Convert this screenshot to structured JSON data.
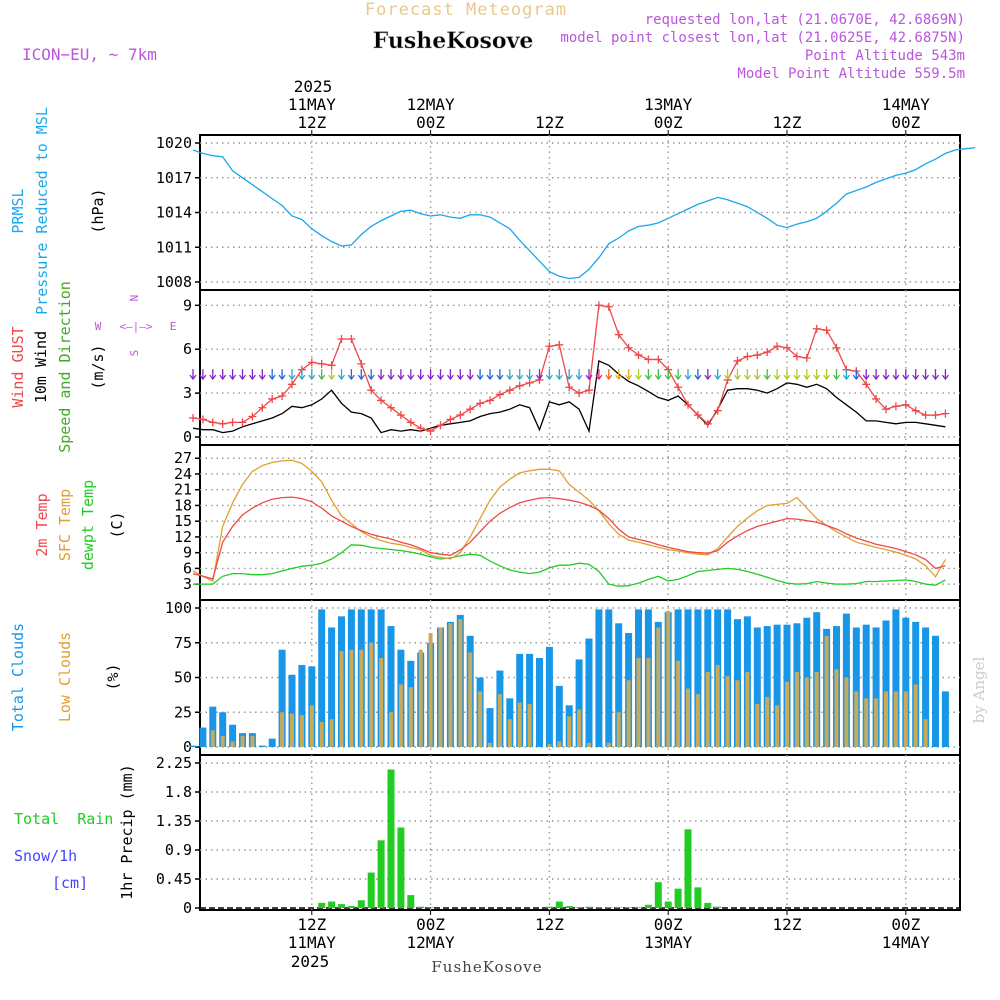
{
  "header": {
    "title": "Forecast Meteogram",
    "location": "FusheKosove",
    "model": "ICON−EU, ~ 7km",
    "requested": "requested lon,lat (21.0670E, 42.6869N)",
    "closest": "model point closest lon,lat (21.0625E, 42.6875N)",
    "point_alt": "Point Altitude 543m",
    "model_alt": "Model Point Altitude 559.5m",
    "footer": "FusheKosove",
    "credit": "by Angel"
  },
  "time_axis": {
    "hour_labels": [
      "12Z",
      "00Z",
      "12Z",
      "00Z",
      "12Z",
      "00Z"
    ],
    "date_labels": [
      "11MAY",
      "12MAY",
      "",
      "13MAY",
      "",
      "14MAY"
    ],
    "year": "2025",
    "hours": [
      12,
      24,
      36,
      48,
      60,
      72
    ]
  },
  "panel_labels": {
    "pressure": [
      "PRMSL",
      "Pressure Reduced to MSL",
      "(hPa)"
    ],
    "wind": [
      "Wind GUST",
      "10m Wind",
      "Speed and Direction",
      "(m/s)"
    ],
    "compass": {
      "n": "N",
      "s": "S",
      "w": "W",
      "e": "E",
      "mid": "<–|–>"
    },
    "temp": [
      "2m Temp",
      "SFC Temp",
      "dewpt Temp",
      "(C)"
    ],
    "clouds": [
      "Total Clouds",
      "Low Clouds",
      "(%)"
    ],
    "precip": [
      "Total  Rain",
      "Snow/1h",
      "[cm]",
      "1hr Precip (mm)"
    ]
  },
  "colors": {
    "pressure": "#1aa7ec",
    "gust": "#f04848",
    "wind": "#000000",
    "arrows": "#44aa22",
    "temp2m": "#f04848",
    "sfc": "#e0a030",
    "dew": "#22cc22",
    "total_clouds": "#1896e8",
    "low_clouds": "#c8aa5a",
    "rain": "#22cc22",
    "snow": "#4444ff",
    "title": "#e8c88c",
    "meta": "#bb55dd"
  },
  "chart_data": [
    {
      "type": "line",
      "title": "PRMSL",
      "ylabel": "(hPa)",
      "ylim": [
        1008,
        1020
      ],
      "yticks": [
        1008,
        1011,
        1014,
        1017,
        1020
      ],
      "x": [
        0,
        1,
        2,
        3,
        4,
        5,
        6,
        7,
        8,
        9,
        10,
        11,
        12,
        13,
        14,
        15,
        16,
        17,
        18,
        19,
        20,
        21,
        22,
        23,
        24,
        25,
        26,
        27,
        28,
        29,
        30,
        31,
        32,
        33,
        34,
        35,
        36,
        37,
        38,
        39,
        40,
        41,
        42,
        43,
        44,
        45,
        46,
        47,
        48,
        49,
        50,
        51,
        52,
        53,
        54,
        55,
        56,
        57,
        58,
        59,
        60,
        61,
        62,
        63,
        64,
        65,
        66,
        67,
        68,
        69,
        70,
        71,
        72,
        73,
        74,
        75,
        76,
        77,
        78,
        79
      ],
      "values": [
        1019.4,
        1019.1,
        1018.9,
        1018.8,
        1017.6,
        1017,
        1016.4,
        1015.8,
        1015.2,
        1014.6,
        1013.7,
        1013.4,
        1012.6,
        1012,
        1011.5,
        1011.1,
        1011.2,
        1012.1,
        1012.8,
        1013.3,
        1013.7,
        1014.1,
        1014.2,
        1013.9,
        1013.7,
        1013.8,
        1013.6,
        1013.5,
        1013.8,
        1013.8,
        1013.6,
        1013.1,
        1012.6,
        1011.6,
        1010.7,
        1009.8,
        1008.9,
        1008.5,
        1008.3,
        1008.4,
        1009.1,
        1010.1,
        1011.3,
        1011.8,
        1012.4,
        1012.8,
        1012.9,
        1013.1,
        1013.5,
        1013.9,
        1014.3,
        1014.7,
        1015,
        1015.3,
        1015.1,
        1014.8,
        1014.5,
        1014,
        1013.5,
        1012.9,
        1012.7,
        1013,
        1013.2,
        1013.5,
        1014.1,
        1014.8,
        1015.6,
        1015.9,
        1016.2,
        1016.6,
        1016.9,
        1017.2,
        1017.4,
        1017.7,
        1018.2,
        1018.6,
        1019.1,
        1019.4,
        1019.5,
        1019.6
      ]
    },
    {
      "type": "line",
      "title": "Wind",
      "ylabel": "(m/s)",
      "ylim": [
        0,
        9.5
      ],
      "yticks": [
        0,
        3,
        6,
        9
      ],
      "x": [
        0,
        1,
        2,
        3,
        4,
        5,
        6,
        7,
        8,
        9,
        10,
        11,
        12,
        13,
        14,
        15,
        16,
        17,
        18,
        19,
        20,
        21,
        22,
        23,
        24,
        25,
        26,
        27,
        28,
        29,
        30,
        31,
        32,
        33,
        34,
        35,
        36,
        37,
        38,
        39,
        40,
        41,
        42,
        43,
        44,
        45,
        46,
        47,
        48,
        49,
        50,
        51,
        52,
        53,
        54,
        55,
        56,
        57,
        58,
        59,
        60,
        61,
        62,
        63,
        64,
        65,
        66,
        67,
        68,
        69,
        70,
        71,
        72,
        73,
        74,
        75,
        76
      ],
      "series": [
        {
          "name": "Wind GUST",
          "values": [
            1.3,
            1.2,
            1,
            0.9,
            1,
            1,
            1.4,
            2,
            2.6,
            2.8,
            3.6,
            4.6,
            5.1,
            5,
            4.9,
            6.7,
            6.7,
            5,
            3.2,
            2.5,
            2,
            1.5,
            1,
            0.6,
            0.4,
            0.8,
            1.2,
            1.5,
            1.9,
            2.3,
            2.5,
            2.9,
            3.2,
            3.5,
            3.7,
            3.9,
            6.2,
            6.3,
            3.4,
            3,
            3.2,
            9,
            8.9,
            7,
            6.1,
            5.6,
            5.3,
            5.3,
            4.6,
            3.4,
            2.2,
            1.5,
            0.9,
            1.8,
            3.9,
            5.2,
            5.5,
            5.6,
            5.8,
            6.2,
            6.1,
            5.5,
            5.4,
            7.4,
            7.3,
            6.1,
            4.6,
            4.5,
            3.6,
            2.6,
            1.9,
            2.1,
            2.2,
            1.8,
            1.5,
            1.5,
            1.6
          ]
        },
        {
          "name": "10m Wind",
          "values": [
            0.6,
            0.5,
            0.5,
            0.3,
            0.4,
            0.7,
            0.9,
            1.1,
            1.3,
            1.6,
            2.1,
            2,
            2.2,
            2.6,
            3.2,
            2.3,
            1.7,
            1.6,
            1.3,
            0.3,
            0.5,
            0.4,
            0.5,
            0.4,
            0.6,
            0.8,
            0.9,
            1,
            1.1,
            1.4,
            1.6,
            1.7,
            1.9,
            2.2,
            2,
            0.5,
            2.4,
            2.2,
            2.4,
            1.9,
            0.4,
            5.2,
            4.9,
            4.3,
            3.8,
            3.5,
            3.1,
            2.7,
            2.5,
            2.8,
            2.2,
            1.5,
            0.8,
            1.9,
            3.2,
            3.3,
            3.3,
            3.2,
            3,
            3.3,
            3.7,
            3.6,
            3.4,
            3.6,
            3.3,
            2.7,
            2.2,
            1.7,
            1.1,
            1.1,
            1,
            0.9,
            1,
            1,
            0.9,
            0.8,
            0.7
          ]
        }
      ]
    },
    {
      "type": "line",
      "title": "Temperature",
      "ylabel": "(C)",
      "ylim": [
        1.5,
        28
      ],
      "yticks": [
        3,
        6,
        9,
        12,
        15,
        18,
        21,
        24,
        27
      ],
      "x": [
        0,
        1,
        2,
        3,
        4,
        5,
        6,
        7,
        8,
        9,
        10,
        11,
        12,
        13,
        14,
        15,
        16,
        17,
        18,
        19,
        20,
        21,
        22,
        23,
        24,
        25,
        26,
        27,
        28,
        29,
        30,
        31,
        32,
        33,
        34,
        35,
        36,
        37,
        38,
        39,
        40,
        41,
        42,
        43,
        44,
        45,
        46,
        47,
        48,
        49,
        50,
        51,
        52,
        53,
        54,
        55,
        56,
        57,
        58,
        59,
        60,
        61,
        62,
        63,
        64,
        65,
        66,
        67,
        68,
        69,
        70,
        71,
        72,
        73,
        74,
        75,
        76
      ],
      "series": [
        {
          "name": "2m Temp",
          "values": [
            5,
            4.5,
            4,
            11,
            14,
            16.2,
            17.5,
            18.5,
            19.2,
            19.5,
            19.6,
            19.3,
            18.7,
            17.5,
            16,
            15,
            14,
            13.2,
            12.5,
            12,
            11.6,
            11,
            10.5,
            9.8,
            9,
            8.7,
            8.5,
            9.5,
            11,
            13,
            15,
            16.5,
            17.6,
            18.5,
            19,
            19.4,
            19.5,
            19.3,
            19,
            18.6,
            18,
            17.1,
            15.5,
            13.5,
            12,
            11.5,
            11.1,
            10.5,
            10,
            9.6,
            9.2,
            9,
            8.9,
            9.4,
            11,
            12.2,
            13.2,
            14,
            14.5,
            15,
            15.5,
            15.4,
            15.1,
            14.8,
            14.2,
            13.5,
            12.6,
            11.8,
            11.2,
            10.6,
            10.2,
            9.8,
            9.2,
            8.6,
            7.7,
            6,
            6.5
          ]
        },
        {
          "name": "SFC Temp",
          "values": [
            5.5,
            4.5,
            3.6,
            14,
            18.5,
            22,
            24.5,
            25.6,
            26.2,
            26.5,
            26.6,
            26,
            24.5,
            22.5,
            19,
            16,
            14.5,
            13,
            12,
            11.3,
            10.8,
            10.5,
            10,
            9.5,
            8.5,
            8.1,
            7.8,
            9,
            12,
            15.5,
            19,
            21.5,
            23,
            24.2,
            24.6,
            24.9,
            24.9,
            24.6,
            22,
            20.5,
            19,
            17,
            14.5,
            12.5,
            11.4,
            11,
            10.5,
            10,
            9.6,
            9.3,
            9,
            8.7,
            8.6,
            9.8,
            12,
            14,
            15.6,
            17,
            18,
            18.2,
            18.4,
            19.5,
            17.5,
            15.5,
            14.2,
            13,
            12,
            11,
            10.5,
            10,
            9.6,
            9.1,
            8.5,
            7.8,
            6.5,
            4.4,
            7.7
          ]
        },
        {
          "name": "dewpt Temp",
          "values": [
            3,
            3,
            3,
            4.5,
            5,
            5,
            4.8,
            4.8,
            5,
            5.5,
            6,
            6.4,
            6.6,
            7,
            7.8,
            9,
            10.5,
            10.4,
            10,
            9.8,
            9.6,
            9.4,
            9.1,
            8.7,
            8.2,
            7.8,
            8,
            8.4,
            8.7,
            8.5,
            7.4,
            6.5,
            5.7,
            5.3,
            5,
            5.3,
            6.1,
            6.6,
            6.6,
            7,
            6.8,
            5.4,
            3,
            2.6,
            2.7,
            3.2,
            3.9,
            4.5,
            3.6,
            3.9,
            4.6,
            5.4,
            5.6,
            5.8,
            6,
            5.8,
            5.4,
            4.9,
            4.3,
            3.7,
            3.2,
            3,
            3.1,
            3.5,
            3.2,
            3,
            3,
            3.1,
            3.5,
            3.5,
            3.6,
            3.7,
            3.8,
            3.5,
            3,
            2.8,
            3.8
          ]
        }
      ]
    },
    {
      "type": "bar",
      "title": "Clouds",
      "ylabel": "(%)",
      "ylim": [
        0,
        100
      ],
      "yticks": [
        0,
        25,
        50,
        75,
        100
      ],
      "x": [
        0,
        1,
        2,
        3,
        4,
        5,
        6,
        7,
        8,
        9,
        10,
        11,
        12,
        13,
        14,
        15,
        16,
        17,
        18,
        19,
        20,
        21,
        22,
        23,
        24,
        25,
        26,
        27,
        28,
        29,
        30,
        31,
        32,
        33,
        34,
        35,
        36,
        37,
        38,
        39,
        40,
        41,
        42,
        43,
        44,
        45,
        46,
        47,
        48,
        49,
        50,
        51,
        52,
        53,
        54,
        55,
        56,
        57,
        58,
        59,
        60,
        61,
        62,
        63,
        64,
        65,
        66,
        67,
        68,
        69,
        70,
        71,
        72,
        73,
        74,
        75,
        76
      ],
      "series": [
        {
          "name": "Total Clouds",
          "values": [
            1,
            14,
            29,
            25,
            16,
            10,
            10,
            1,
            6,
            70,
            52,
            59,
            58,
            99,
            86,
            94,
            99,
            99,
            99,
            99,
            87,
            70,
            62,
            68,
            75,
            86,
            90,
            95,
            80,
            50,
            28,
            55,
            35,
            67,
            67,
            64,
            72,
            44,
            30,
            63,
            78,
            99,
            99,
            89,
            82,
            99,
            99,
            90,
            97,
            99,
            99,
            99,
            99,
            99,
            99,
            92,
            94,
            86,
            87,
            88,
            88,
            89,
            93,
            97,
            85,
            87,
            96,
            86,
            88,
            86,
            91,
            99,
            93,
            90,
            86,
            80,
            40
          ]
        },
        {
          "name": "Low Clouds",
          "values": [
            0,
            0,
            12,
            8,
            4,
            8,
            8,
            0,
            0,
            25,
            24,
            23,
            30,
            18,
            20,
            69,
            70,
            70,
            75,
            64,
            25,
            45,
            43,
            70,
            82,
            86,
            89,
            92,
            68,
            40,
            3,
            38,
            20,
            32,
            31,
            0,
            2,
            4,
            22,
            27,
            3,
            0,
            3,
            25,
            48,
            64,
            64,
            86,
            98,
            62,
            42,
            38,
            54,
            59,
            51,
            48,
            54,
            31,
            36,
            30,
            47,
            54,
            50,
            54,
            80,
            56,
            50,
            40,
            35,
            35,
            40,
            40,
            40,
            45,
            20,
            0,
            0
          ]
        }
      ]
    },
    {
      "type": "bar",
      "title": "Precipitation",
      "ylabel": "1hr Precip (mm)",
      "ylim": [
        0,
        2.25
      ],
      "yticks": [
        0,
        0.45,
        0.9,
        1.35,
        1.8,
        2.25
      ],
      "x": [
        13,
        14,
        15,
        16,
        17,
        18,
        19,
        20,
        21,
        22,
        23,
        24,
        36,
        37,
        38,
        39,
        40,
        41,
        42,
        43,
        44,
        45,
        46,
        47,
        48,
        49,
        50,
        51,
        52,
        53
      ],
      "series": [
        {
          "name": "Rain",
          "values": [
            0.08,
            0.1,
            0.06,
            0.03,
            0.12,
            0.55,
            1.05,
            2.15,
            1.25,
            0.2,
            0.02,
            0.01,
            0.02,
            0.1,
            0.03,
            0.01,
            0.02,
            0.01,
            0.01,
            0.01,
            0.01,
            0.01,
            0.05,
            0.4,
            0.1,
            0.3,
            1.22,
            0.32,
            0.08,
            0.02
          ]
        },
        {
          "name": "Snow",
          "values": [
            0,
            0,
            0,
            0,
            0,
            0,
            0,
            0,
            0,
            0,
            0,
            0,
            0,
            0,
            0,
            0,
            0,
            0,
            0,
            0,
            0,
            0,
            0,
            0,
            0,
            0,
            0,
            0,
            0,
            0
          ]
        }
      ]
    }
  ]
}
